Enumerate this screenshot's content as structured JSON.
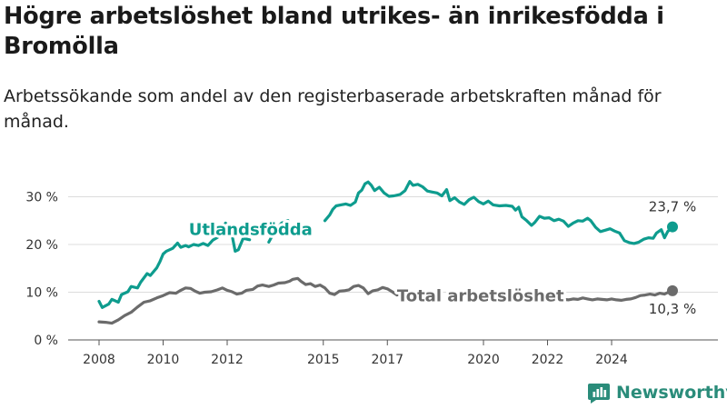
{
  "title": "Högre arbetslöshet bland utrikes- än inrikesfödda i Bromölla",
  "subtitle": "Arbetssökande som andel av den registerbaserade arbetskraften månad för månad.",
  "brand": {
    "name": "Newsworthy",
    "icon": "newsworthy-logo-icon"
  },
  "colors": {
    "utlandsfodda": "#0e9c8e",
    "total": "#6b6b6b",
    "grid": "#dcdcdc",
    "brand": "#2a8c7a"
  },
  "chart_data": {
    "type": "line",
    "title": "Högre arbetslöshet bland utrikes- än inrikesfödda i Bromölla",
    "subtitle": "Arbetssökande som andel av den registerbaserade arbetskraften månad för månad.",
    "xlabel": "",
    "ylabel": "",
    "xlim": [
      2007.6,
      2025.9
    ],
    "ylim": [
      0,
      33
    ],
    "x_ticks": [
      2008,
      2010,
      2012,
      2015,
      2017,
      2020,
      2022,
      2024
    ],
    "x_tick_labels": [
      "2008",
      "2010",
      "2012",
      "2015",
      "2017",
      "2020",
      "2022",
      "2024"
    ],
    "y_ticks": [
      0,
      10,
      20,
      30
    ],
    "y_tick_labels": [
      "0 %",
      "10 %",
      "20 %",
      "30 %"
    ],
    "grid": "horizontal",
    "legend": "inline labels",
    "series": [
      {
        "name": "Utlandsfödda",
        "label_position": [
          2010.8,
          23.1
        ],
        "points": [
          [
            2008.0,
            8.1
          ],
          [
            2008.1,
            6.8
          ],
          [
            2008.3,
            7.5
          ],
          [
            2008.4,
            8.5
          ],
          [
            2008.6,
            7.9
          ],
          [
            2008.7,
            9.5
          ],
          [
            2008.9,
            10.1
          ],
          [
            2009.0,
            11.2
          ],
          [
            2009.2,
            10.9
          ],
          [
            2009.3,
            12.1
          ],
          [
            2009.5,
            13.9
          ],
          [
            2009.6,
            13.5
          ],
          [
            2009.8,
            15.1
          ],
          [
            2009.9,
            16.4
          ],
          [
            2010.0,
            18.0
          ],
          [
            2010.1,
            18.6
          ],
          [
            2010.2,
            18.9
          ],
          [
            2010.3,
            19.2
          ],
          [
            2010.45,
            20.3
          ],
          [
            2010.55,
            19.4
          ],
          [
            2010.7,
            19.8
          ],
          [
            2010.8,
            19.5
          ],
          [
            2010.95,
            20.0
          ],
          [
            2011.1,
            19.8
          ],
          [
            2011.25,
            20.2
          ],
          [
            2011.4,
            19.8
          ],
          [
            2011.55,
            20.9
          ],
          [
            2011.7,
            21.5
          ],
          [
            2011.85,
            23.1
          ],
          [
            2011.95,
            24.5
          ],
          [
            2012.05,
            23.4
          ],
          [
            2012.15,
            22.0
          ],
          [
            2012.25,
            18.6
          ],
          [
            2012.35,
            18.9
          ],
          [
            2012.5,
            21.3
          ],
          [
            2012.7,
            21.0
          ],
          [
            2013.3,
            20.5
          ],
          [
            2013.5,
            23.0
          ],
          [
            2013.7,
            24.5
          ],
          [
            2013.9,
            25.0
          ],
          [
            2015.05,
            25.0
          ],
          [
            2015.2,
            26.2
          ],
          [
            2015.3,
            27.4
          ],
          [
            2015.4,
            28.1
          ],
          [
            2015.55,
            28.3
          ],
          [
            2015.7,
            28.5
          ],
          [
            2015.85,
            28.2
          ],
          [
            2016.0,
            28.9
          ],
          [
            2016.1,
            30.8
          ],
          [
            2016.2,
            31.4
          ],
          [
            2016.3,
            32.7
          ],
          [
            2016.4,
            33.1
          ],
          [
            2016.5,
            32.4
          ],
          [
            2016.6,
            31.3
          ],
          [
            2016.75,
            32.0
          ],
          [
            2016.9,
            30.8
          ],
          [
            2017.05,
            30.1
          ],
          [
            2017.2,
            30.2
          ],
          [
            2017.4,
            30.5
          ],
          [
            2017.55,
            31.3
          ],
          [
            2017.7,
            33.2
          ],
          [
            2017.8,
            32.4
          ],
          [
            2017.95,
            32.6
          ],
          [
            2018.1,
            32.1
          ],
          [
            2018.25,
            31.2
          ],
          [
            2018.4,
            31.0
          ],
          [
            2018.55,
            30.8
          ],
          [
            2018.7,
            30.2
          ],
          [
            2018.85,
            31.5
          ],
          [
            2018.95,
            29.2
          ],
          [
            2019.1,
            29.8
          ],
          [
            2019.25,
            28.9
          ],
          [
            2019.4,
            28.4
          ],
          [
            2019.55,
            29.4
          ],
          [
            2019.7,
            29.9
          ],
          [
            2019.85,
            29.0
          ],
          [
            2020.0,
            28.5
          ],
          [
            2020.15,
            29.1
          ],
          [
            2020.3,
            28.3
          ],
          [
            2020.5,
            28.1
          ],
          [
            2020.7,
            28.2
          ],
          [
            2020.9,
            28.0
          ],
          [
            2021.0,
            27.2
          ],
          [
            2021.1,
            27.8
          ],
          [
            2021.2,
            25.8
          ],
          [
            2021.35,
            25.0
          ],
          [
            2021.5,
            24.0
          ],
          [
            2021.6,
            24.6
          ],
          [
            2021.75,
            25.9
          ],
          [
            2021.9,
            25.5
          ],
          [
            2022.05,
            25.6
          ],
          [
            2022.2,
            25.0
          ],
          [
            2022.35,
            25.3
          ],
          [
            2022.5,
            24.9
          ],
          [
            2022.65,
            23.8
          ],
          [
            2022.8,
            24.5
          ],
          [
            2022.95,
            25.0
          ],
          [
            2023.1,
            24.9
          ],
          [
            2023.25,
            25.5
          ],
          [
            2023.35,
            25.0
          ],
          [
            2023.5,
            23.6
          ],
          [
            2023.65,
            22.7
          ],
          [
            2023.8,
            23.0
          ],
          [
            2023.95,
            23.3
          ],
          [
            2024.1,
            22.8
          ],
          [
            2024.25,
            22.4
          ],
          [
            2024.4,
            20.8
          ],
          [
            2024.55,
            20.4
          ],
          [
            2024.7,
            20.2
          ],
          [
            2024.85,
            20.5
          ],
          [
            2025.0,
            21.1
          ],
          [
            2025.15,
            21.4
          ],
          [
            2025.3,
            21.3
          ],
          [
            2025.4,
            22.4
          ],
          [
            2025.55,
            23.1
          ],
          [
            2025.65,
            21.4
          ],
          [
            2025.75,
            22.7
          ],
          [
            2025.9,
            23.7
          ]
        ]
      },
      {
        "name": "Total arbetslöshet",
        "label_position": [
          2017.3,
          9.2
        ],
        "points": [
          [
            2008.0,
            3.8
          ],
          [
            2008.2,
            3.7
          ],
          [
            2008.4,
            3.5
          ],
          [
            2008.6,
            4.2
          ],
          [
            2008.8,
            5.1
          ],
          [
            2009.0,
            5.8
          ],
          [
            2009.2,
            6.9
          ],
          [
            2009.4,
            7.9
          ],
          [
            2009.6,
            8.2
          ],
          [
            2009.8,
            8.8
          ],
          [
            2010.0,
            9.3
          ],
          [
            2010.2,
            9.9
          ],
          [
            2010.4,
            9.8
          ],
          [
            2010.55,
            10.4
          ],
          [
            2010.7,
            10.9
          ],
          [
            2010.85,
            10.8
          ],
          [
            2011.0,
            10.2
          ],
          [
            2011.15,
            9.8
          ],
          [
            2011.3,
            10.0
          ],
          [
            2011.5,
            10.1
          ],
          [
            2011.7,
            10.5
          ],
          [
            2011.85,
            10.9
          ],
          [
            2012.0,
            10.4
          ],
          [
            2012.15,
            10.1
          ],
          [
            2012.3,
            9.6
          ],
          [
            2012.45,
            9.8
          ],
          [
            2012.6,
            10.4
          ],
          [
            2012.8,
            10.6
          ],
          [
            2012.95,
            11.3
          ],
          [
            2013.1,
            11.5
          ],
          [
            2013.3,
            11.2
          ],
          [
            2013.45,
            11.5
          ],
          [
            2013.6,
            11.9
          ],
          [
            2013.8,
            12.0
          ],
          [
            2013.95,
            12.3
          ],
          [
            2014.05,
            12.7
          ],
          [
            2014.2,
            12.9
          ],
          [
            2014.3,
            12.3
          ],
          [
            2014.45,
            11.6
          ],
          [
            2014.6,
            11.8
          ],
          [
            2014.75,
            11.2
          ],
          [
            2014.9,
            11.5
          ],
          [
            2015.05,
            10.9
          ],
          [
            2015.2,
            9.8
          ],
          [
            2015.35,
            9.5
          ],
          [
            2015.5,
            10.2
          ],
          [
            2015.65,
            10.3
          ],
          [
            2015.8,
            10.5
          ],
          [
            2015.95,
            11.2
          ],
          [
            2016.1,
            11.4
          ],
          [
            2016.25,
            10.9
          ],
          [
            2016.4,
            9.7
          ],
          [
            2016.55,
            10.3
          ],
          [
            2016.7,
            10.5
          ],
          [
            2016.85,
            11.0
          ],
          [
            2017.0,
            10.7
          ],
          [
            2017.15,
            10.1
          ],
          [
            2017.3,
            9.4
          ],
          [
            2017.4,
            9.6
          ],
          [
            2020.85,
            8.9
          ],
          [
            2021.0,
            9.0
          ],
          [
            2021.15,
            8.7
          ],
          [
            2021.3,
            8.5
          ],
          [
            2021.45,
            8.4
          ],
          [
            2021.6,
            8.6
          ],
          [
            2021.75,
            8.5
          ],
          [
            2021.9,
            8.7
          ],
          [
            2022.05,
            8.5
          ],
          [
            2022.2,
            8.4
          ],
          [
            2022.35,
            8.6
          ],
          [
            2022.5,
            8.5
          ],
          [
            2022.65,
            8.4
          ],
          [
            2022.8,
            8.6
          ],
          [
            2022.95,
            8.5
          ],
          [
            2023.1,
            8.8
          ],
          [
            2023.25,
            8.6
          ],
          [
            2023.4,
            8.4
          ],
          [
            2023.55,
            8.6
          ],
          [
            2023.7,
            8.5
          ],
          [
            2023.85,
            8.4
          ],
          [
            2024.0,
            8.6
          ],
          [
            2024.15,
            8.4
          ],
          [
            2024.3,
            8.3
          ],
          [
            2024.45,
            8.5
          ],
          [
            2024.6,
            8.6
          ],
          [
            2024.75,
            8.9
          ],
          [
            2024.9,
            9.3
          ],
          [
            2025.05,
            9.4
          ],
          [
            2025.2,
            9.6
          ],
          [
            2025.35,
            9.4
          ],
          [
            2025.5,
            9.8
          ],
          [
            2025.65,
            9.6
          ],
          [
            2025.8,
            10.1
          ],
          [
            2025.9,
            10.3
          ]
        ]
      }
    ],
    "annotations": [
      {
        "series": "Utlandsfödda",
        "text": "23,7 %",
        "x": 2025.9,
        "y": 23.7
      },
      {
        "series": "Total arbetslöshet",
        "text": "10,3 %",
        "x": 2025.9,
        "y": 10.3
      }
    ]
  }
}
